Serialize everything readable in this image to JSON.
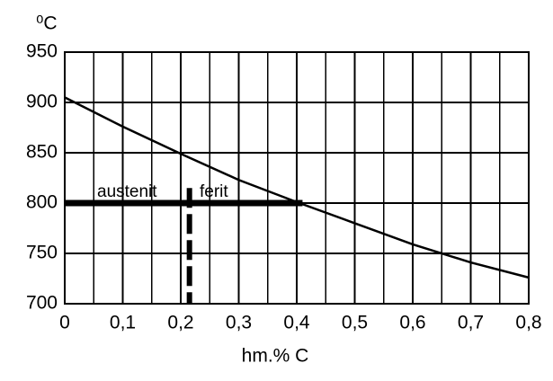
{
  "chart_data": {
    "type": "line",
    "y_label": "⁰C",
    "x_label": "hm.% C",
    "xlim": [
      0,
      0.8
    ],
    "ylim": [
      700,
      950
    ],
    "xticks": [
      0,
      {
        "value": 0.1,
        "label": "0,1"
      },
      {
        "value": 0.2,
        "label": "0,2"
      },
      {
        "value": 0.3,
        "label": "0,3"
      },
      {
        "value": 0.4,
        "label": "0,4"
      },
      {
        "value": 0.5,
        "label": "0,5"
      },
      {
        "value": 0.6,
        "label": "0,6"
      },
      {
        "value": 0.7,
        "label": "0,7"
      },
      {
        "value": 0.8,
        "label": "0,8"
      }
    ],
    "xminor": [
      0.05,
      0.15,
      0.25,
      0.35,
      0.45,
      0.55,
      0.65,
      0.75
    ],
    "yticks": [
      700,
      750,
      800,
      850,
      900,
      950
    ],
    "grid": true,
    "series": [
      {
        "color": "#000000",
        "x": [
          0,
          0.1,
          0.2,
          0.3,
          0.4,
          0.5,
          0.6,
          0.7,
          0.8
        ],
        "values": [
          905,
          876,
          849,
          823,
          801,
          780,
          759,
          741,
          726
        ]
      },
      {
        "color": "#000000",
        "x": [
          0,
          0.41
        ],
        "values": [
          800,
          800
        ]
      },
      {
        "color": "#000000",
        "x": [
          0.215,
          0.215
        ],
        "values": [
          815,
          700
        ]
      }
    ],
    "annotations": [
      "austenit",
      "ferit"
    ]
  }
}
